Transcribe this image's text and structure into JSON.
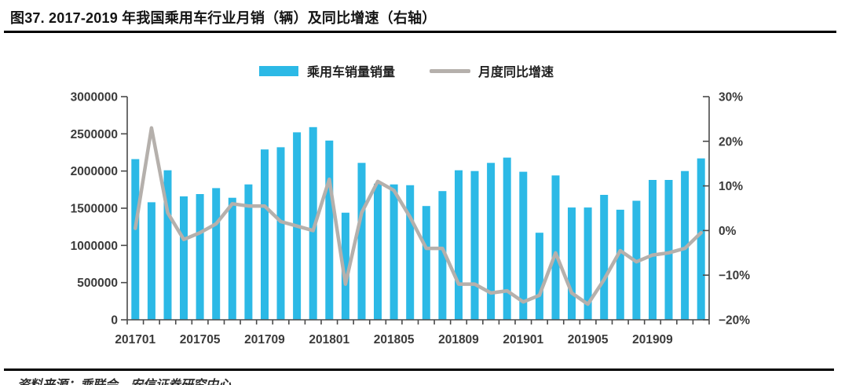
{
  "title": "图37. 2017-2019 年我国乘用车行业月销（辆）及同比增速（右轴）",
  "source": "资料来源：乘联会，安信证券研究中心",
  "legend": {
    "bar_label": "乘用车销量销量",
    "line_label": "月度同比增速"
  },
  "colors": {
    "bar": "#2CB9E6",
    "line": "#B5B0AC",
    "axis": "#4a4a4a",
    "tick_text": "#3b3b3b"
  },
  "chart_data": {
    "type": "bar+line",
    "months": [
      "201701",
      "201702",
      "201703",
      "201704",
      "201705",
      "201706",
      "201707",
      "201708",
      "201709",
      "201710",
      "201711",
      "201712",
      "201801",
      "201802",
      "201803",
      "201804",
      "201805",
      "201806",
      "201807",
      "201808",
      "201809",
      "201810",
      "201811",
      "201812",
      "201901",
      "201902",
      "201903",
      "201904",
      "201905",
      "201906",
      "201907",
      "201908",
      "201909",
      "201910",
      "201911",
      "201912"
    ],
    "bar_series": {
      "name": "乘用车销量销量",
      "axis": "left",
      "values": [
        2160000,
        1580000,
        2010000,
        1660000,
        1690000,
        1770000,
        1640000,
        1820000,
        2290000,
        2320000,
        2520000,
        2590000,
        2410000,
        1440000,
        2110000,
        1830000,
        1820000,
        1810000,
        1530000,
        1730000,
        2010000,
        2000000,
        2110000,
        2180000,
        1990000,
        1170000,
        1940000,
        1510000,
        1510000,
        1680000,
        1480000,
        1600000,
        1880000,
        1880000,
        2000000,
        2170000
      ]
    },
    "line_series": {
      "name": "月度同比增速",
      "axis": "right",
      "unit": "%",
      "values": [
        0.5,
        23,
        4,
        -2,
        -0.5,
        1.5,
        6,
        5.5,
        5.5,
        2,
        1,
        0,
        11.5,
        -12,
        4,
        11,
        9,
        3,
        -4,
        -4,
        -12,
        -12,
        -14,
        -13.5,
        -16,
        -14.5,
        -5,
        -14,
        -16.5,
        -11,
        -4.5,
        -7,
        -5.5,
        -5,
        -4,
        -0.5
      ]
    },
    "y_left": {
      "min": 0,
      "max": 3000000,
      "ticks": [
        "3000000",
        "2500000",
        "2000000",
        "1500000",
        "1000000",
        "500000",
        "0"
      ]
    },
    "y_right": {
      "min": -20,
      "max": 30,
      "ticks": [
        "30%",
        "20%",
        "10%",
        "0%",
        "−10%",
        "−20%"
      ]
    },
    "x_tick_labels": [
      "201701",
      "201705",
      "201709",
      "201801",
      "201805",
      "201809",
      "201901",
      "201905",
      "201909"
    ],
    "grid": "off",
    "legend_position": "top-center"
  }
}
